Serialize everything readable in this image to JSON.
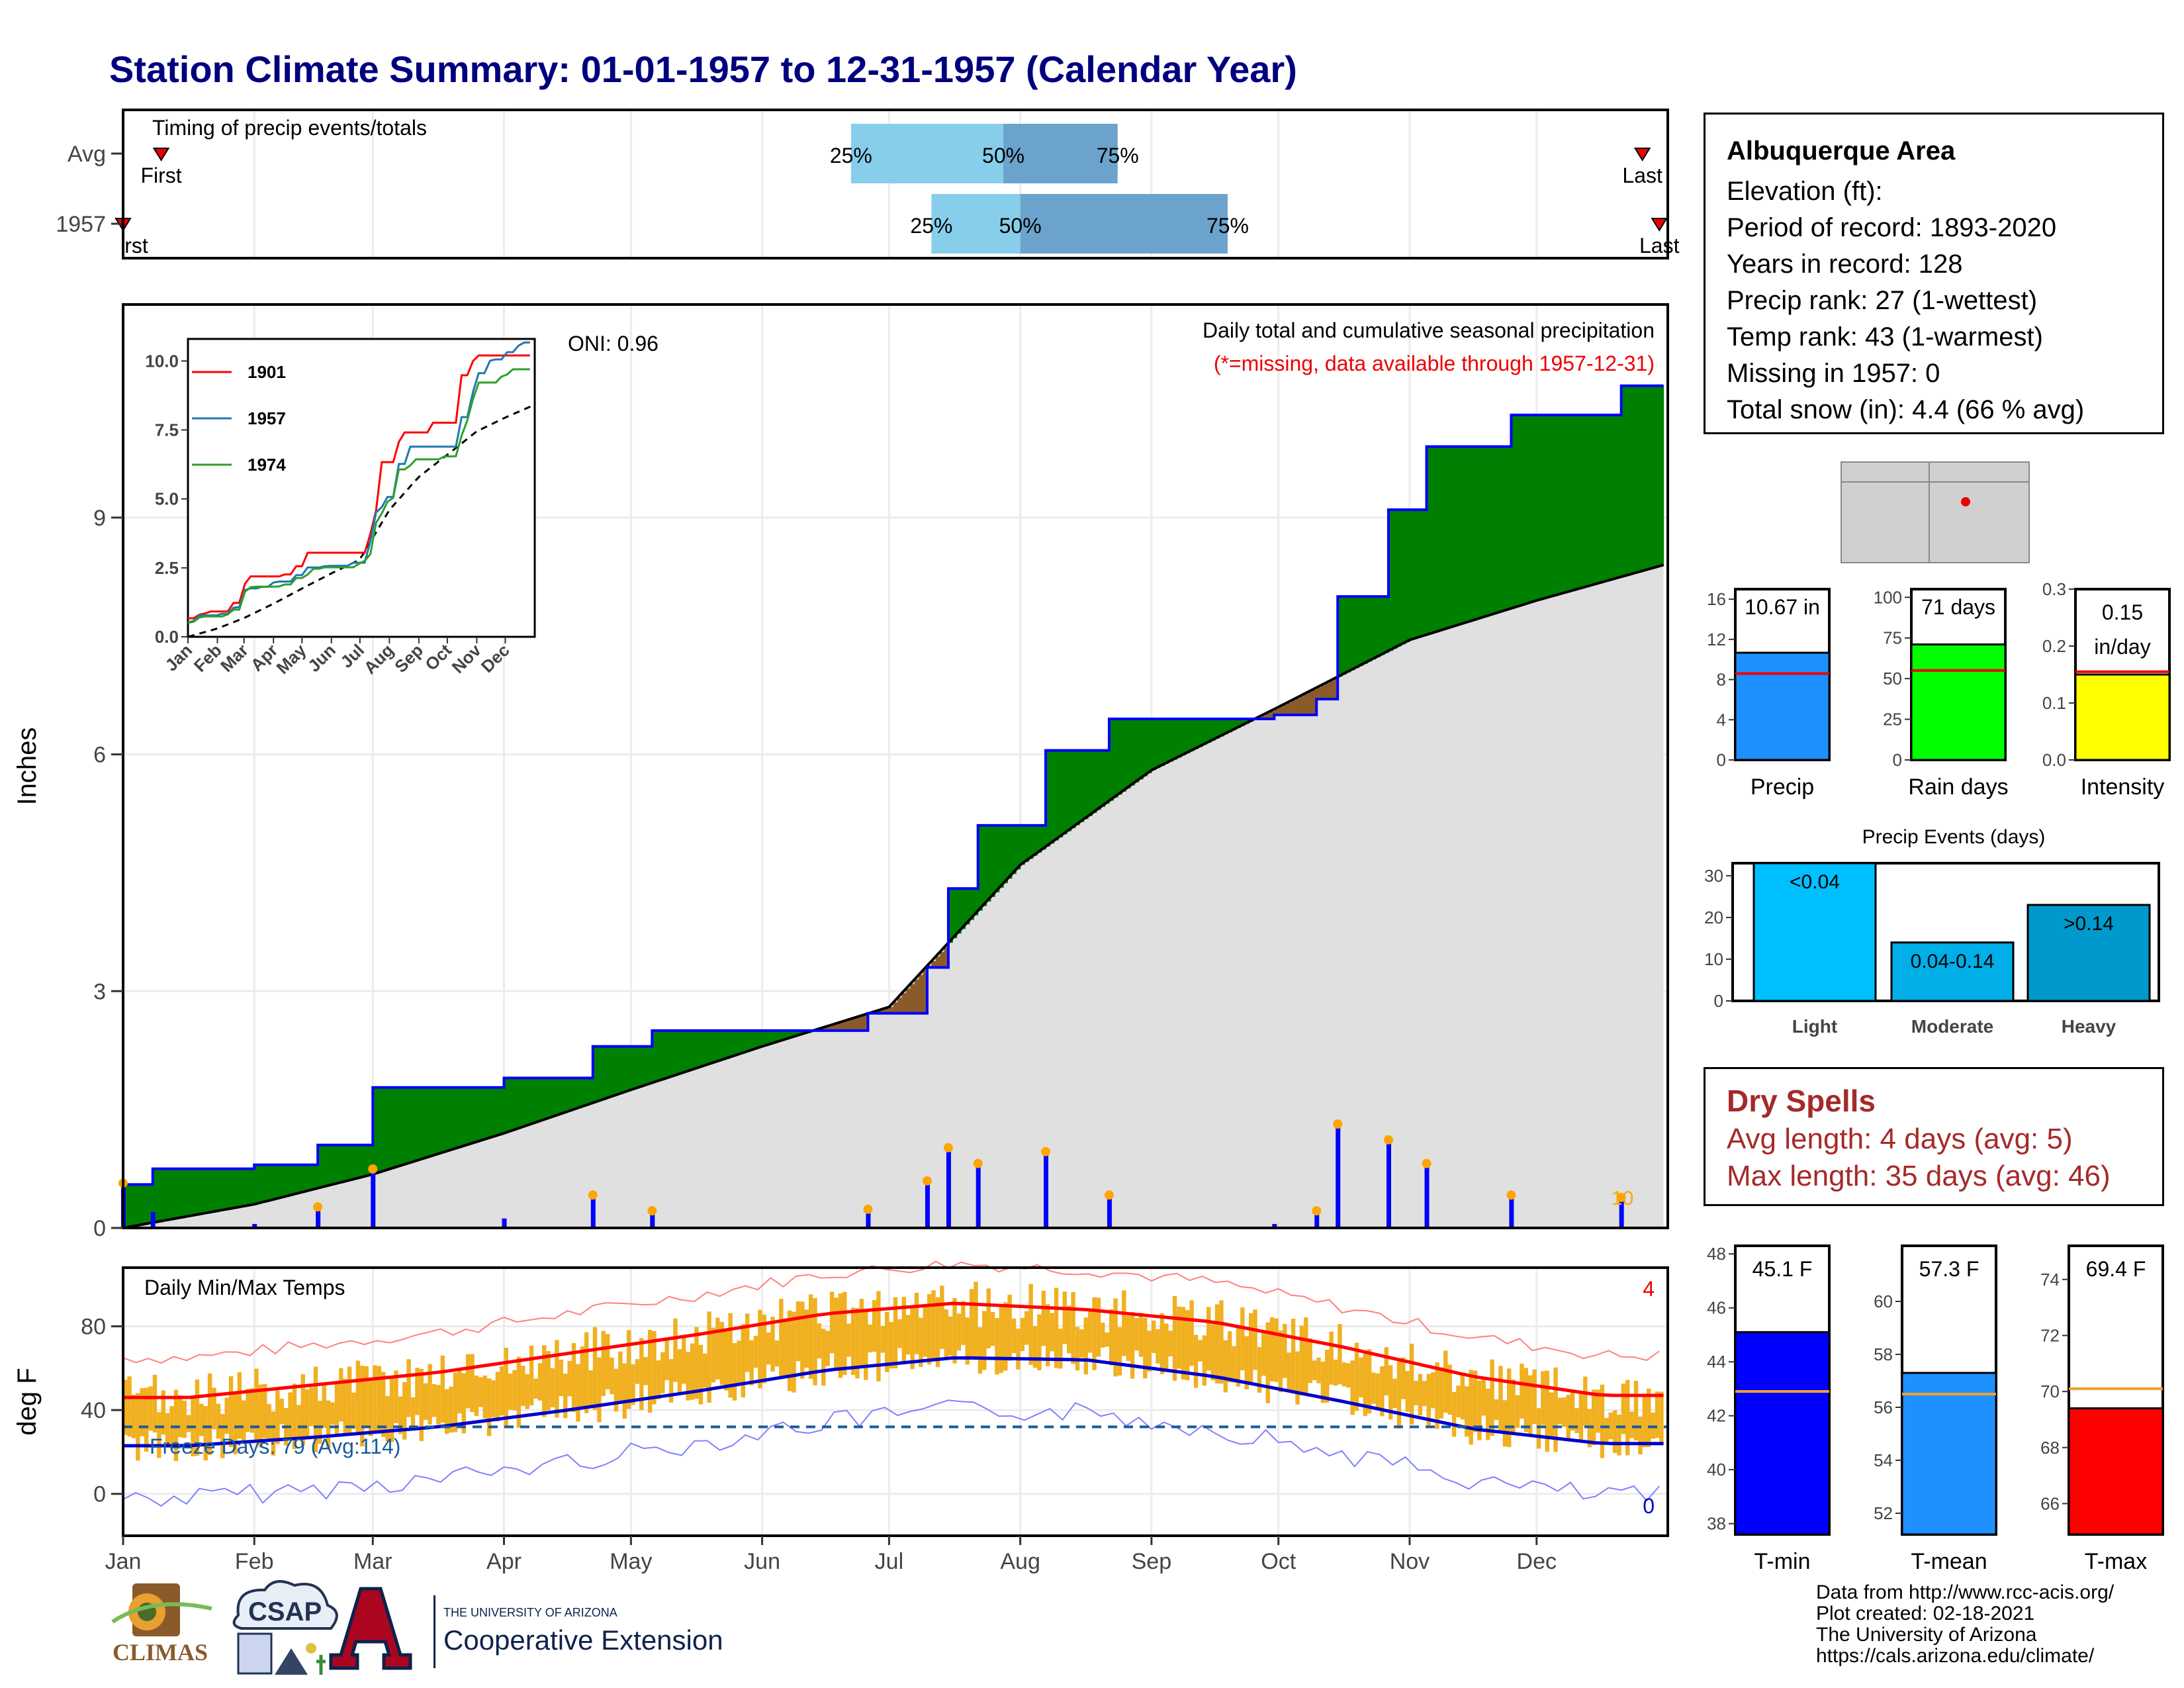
{
  "title": "Station Climate Summary: 01-01-1957 to 12-31-1957 (Calendar Year)",
  "months": [
    "Jan",
    "Feb",
    "Mar",
    "Apr",
    "May",
    "Jun",
    "Jul",
    "Aug",
    "Sep",
    "Oct",
    "Nov",
    "Dec"
  ],
  "timing_panel": {
    "label": "Timing of precip events/totals",
    "rows": [
      "Avg",
      "1957"
    ],
    "first_label": "First",
    "first_label_cut": "rst",
    "last_label": "Last",
    "q25": "25%",
    "q50": "50%",
    "q75": "75%"
  },
  "precip_panel": {
    "ylabel": "Inches",
    "oni": "ONI: 0.96",
    "caption": "Daily total and cumulative seasonal precipitation",
    "missing_note": "(*=missing, data available through 1957-12-31)",
    "event_count": "10",
    "yticks": [
      "0",
      "3",
      "6",
      "9"
    ]
  },
  "inset": {
    "yticks": [
      "0.0",
      "2.5",
      "5.0",
      "7.5",
      "10.0"
    ],
    "xticks": [
      "Jan",
      "Feb",
      "Mar",
      "Apr",
      "May",
      "Jun",
      "Jul",
      "Aug",
      "Sep",
      "Oct",
      "Nov",
      "Dec"
    ],
    "legend": [
      "1901",
      "1957",
      "1974"
    ]
  },
  "temp_panel": {
    "ylabel": "deg F",
    "title": "Daily Min/Max Temps",
    "freeze": "Freeze Days: 79 (Avg:114)",
    "count_high": "4",
    "count_low": "0",
    "yticks": [
      "0",
      "40",
      "80"
    ]
  },
  "info": {
    "station": "Albuquerque Area",
    "lines": [
      "Elevation (ft):",
      "Period of record: 1893-2020",
      "Years in record: 128",
      "Precip rank: 27 (1-wettest)",
      "Temp rank: 43 (1-warmest)",
      "Missing in 1957: 0",
      "Total snow (in): 4.4 (66 % avg)"
    ]
  },
  "dry_spells": {
    "title": "Dry Spells",
    "avg": "Avg length: 4 days (avg: 5)",
    "max": "Max length: 35 days (avg: 46)"
  },
  "credits": [
    "Data from http://www.rcc-acis.org/",
    "Plot created: 02-18-2021",
    "The University of Arizona",
    "https://cals.arizona.edu/climate/"
  ],
  "logos": {
    "climas": "CLIMAS",
    "csap": "CSAP",
    "uofa_small": "THE UNIVERSITY OF ARIZONA",
    "coop": "Cooperative Extension"
  },
  "colors": {
    "title": "#00007f",
    "cum_above": "#008000",
    "cum_below": "#8b5a2b",
    "normal_fill": "#e0e0e0",
    "daily_bar": "#0000ff",
    "temp_bar": "#f0b020",
    "tmax_line": "#ff0000",
    "tmin_line": "#0000cc",
    "dry": "#a52a2a"
  },
  "chart_data": [
    {
      "type": "bar",
      "title": "Timing of precip events/totals",
      "series": [
        {
          "name": "Avg",
          "q25": "Jun 22",
          "q50": "Jul 28",
          "q75": "Aug 24",
          "first": "Jan 10",
          "last": "Dec 26"
        },
        {
          "name": "1957",
          "q25": "Jul 11",
          "q50": "Aug 1",
          "q75": "Sep 19",
          "first": "Jan 1",
          "last": "Dec 30"
        }
      ]
    },
    {
      "type": "area",
      "title": "Daily total and cumulative seasonal precipitation",
      "ylabel": "Inches",
      "ylim": [
        0,
        11.7
      ],
      "cumulative_1957": [
        {
          "date": "01-01",
          "value": 0.55
        },
        {
          "date": "01-08",
          "value": 0.75
        },
        {
          "date": "02-01",
          "value": 0.8
        },
        {
          "date": "02-16",
          "value": 1.05
        },
        {
          "date": "03-01",
          "value": 1.78
        },
        {
          "date": "04-01",
          "value": 1.9
        },
        {
          "date": "04-22",
          "value": 2.3
        },
        {
          "date": "05-06",
          "value": 2.5
        },
        {
          "date": "06-26",
          "value": 2.72
        },
        {
          "date": "07-10",
          "value": 3.3
        },
        {
          "date": "07-15",
          "value": 4.3
        },
        {
          "date": "07-22",
          "value": 5.1
        },
        {
          "date": "08-07",
          "value": 6.05
        },
        {
          "date": "08-22",
          "value": 6.45
        },
        {
          "date": "09-30",
          "value": 6.5
        },
        {
          "date": "10-10",
          "value": 6.7
        },
        {
          "date": "10-15",
          "value": 8.0
        },
        {
          "date": "10-27",
          "value": 9.1
        },
        {
          "date": "11-05",
          "value": 9.9
        },
        {
          "date": "11-25",
          "value": 10.3
        },
        {
          "date": "12-21",
          "value": 10.67
        }
      ],
      "normal": [
        {
          "date": "01-01",
          "value": 0.0
        },
        {
          "date": "02-01",
          "value": 0.3
        },
        {
          "date": "03-01",
          "value": 0.68
        },
        {
          "date": "04-01",
          "value": 1.2
        },
        {
          "date": "05-01",
          "value": 1.75
        },
        {
          "date": "06-01",
          "value": 2.3
        },
        {
          "date": "07-01",
          "value": 2.8
        },
        {
          "date": "08-01",
          "value": 4.6
        },
        {
          "date": "09-01",
          "value": 5.8
        },
        {
          "date": "10-01",
          "value": 6.6
        },
        {
          "date": "11-01",
          "value": 7.45
        },
        {
          "date": "12-01",
          "value": 7.95
        },
        {
          "date": "12-31",
          "value": 8.4
        }
      ]
    },
    {
      "type": "line",
      "title": "Daily Min/Max Temps",
      "ylabel": "deg F",
      "ylim": [
        -20,
        108
      ],
      "avg_tmax": [
        {
          "month": "Jan",
          "value": 46
        },
        {
          "month": "Feb",
          "value": 52
        },
        {
          "month": "Mar",
          "value": 58
        },
        {
          "month": "Apr",
          "value": 67
        },
        {
          "month": "May",
          "value": 76
        },
        {
          "month": "Jun",
          "value": 86
        },
        {
          "month": "Jul",
          "value": 91
        },
        {
          "month": "Aug",
          "value": 88
        },
        {
          "month": "Sep",
          "value": 82
        },
        {
          "month": "Oct",
          "value": 70
        },
        {
          "month": "Nov",
          "value": 56
        },
        {
          "month": "Dec",
          "value": 47
        }
      ],
      "avg_tmin": [
        {
          "month": "Jan",
          "value": 23
        },
        {
          "month": "Feb",
          "value": 27
        },
        {
          "month": "Mar",
          "value": 32
        },
        {
          "month": "Apr",
          "value": 40
        },
        {
          "month": "May",
          "value": 49
        },
        {
          "month": "Jun",
          "value": 59
        },
        {
          "month": "Jul",
          "value": 65
        },
        {
          "month": "Aug",
          "value": 64
        },
        {
          "month": "Sep",
          "value": 56
        },
        {
          "month": "Oct",
          "value": 44
        },
        {
          "month": "Nov",
          "value": 31
        },
        {
          "month": "Dec",
          "value": 24
        }
      ],
      "freeze_line": 32
    },
    {
      "type": "bar",
      "categories": [
        "Precip"
      ],
      "values": [
        10.67
      ],
      "avg": 8.6,
      "label": "10.67 in",
      "ylim": [
        0,
        17
      ]
    },
    {
      "type": "bar",
      "categories": [
        "Rain days"
      ],
      "values": [
        71
      ],
      "avg": 55,
      "label": "71 days",
      "ylim": [
        0,
        105
      ]
    },
    {
      "type": "bar",
      "categories": [
        "Intensity"
      ],
      "values": [
        0.15
      ],
      "avg": 0.155,
      "label": "0.15 in/day",
      "ylim": [
        0,
        0.3
      ]
    },
    {
      "type": "bar",
      "title": "Precip Events (days)",
      "categories": [
        "Light",
        "Moderate",
        "Heavy"
      ],
      "values": [
        34,
        14,
        23
      ],
      "bar_labels": [
        "<0.04",
        "0.04-0.14",
        ">0.14"
      ],
      "ylim": [
        0,
        33
      ]
    },
    {
      "type": "bar",
      "categories": [
        "T-min"
      ],
      "values": [
        45.1
      ],
      "avg": 42.9,
      "label": "45.1 F",
      "ylim": [
        37.6,
        48.3
      ]
    },
    {
      "type": "bar",
      "categories": [
        "T-mean"
      ],
      "values": [
        57.3
      ],
      "avg": 56.5,
      "label": "57.3 F",
      "ylim": [
        51.2,
        62.1
      ]
    },
    {
      "type": "bar",
      "categories": [
        "T-max"
      ],
      "values": [
        69.4
      ],
      "avg": 70.1,
      "label": "69.4 F",
      "ylim": [
        64.9,
        75.2
      ]
    }
  ]
}
